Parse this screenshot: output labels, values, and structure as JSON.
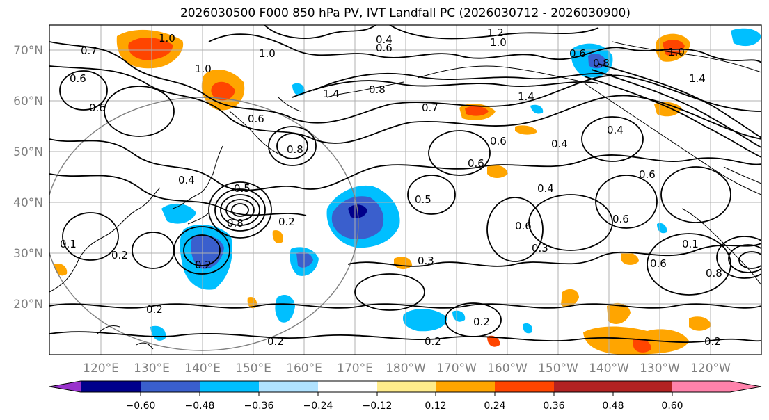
{
  "title": "2026030500 F000 850 hPa PV, IVT Landfall PC (2026030712 - 2026030900)",
  "lat_labels": [
    "70°N",
    "60°N",
    "50°N",
    "40°N",
    "30°N",
    "20°N"
  ],
  "lon_labels": [
    "120°E",
    "130°E",
    "140°E",
    "150°E",
    "160°E",
    "170°E",
    "180°W",
    "170°W",
    "160°W",
    "150°W",
    "140°W",
    "130°W",
    "120°W"
  ],
  "colorbar": {
    "colors": [
      "#9932cc",
      "#00008b",
      "#3a5fcd",
      "#00bfff",
      "#b0e2ff",
      "#ffffff",
      "#ffec8b",
      "#ffa500",
      "#ff4500",
      "#b22222",
      "#ff82ab"
    ],
    "tick_labels": [
      "−0.60",
      "−0.48",
      "−0.36",
      "−0.24",
      "−0.12",
      "0.12",
      "0.24",
      "0.36",
      "0.48",
      "0.60"
    ]
  },
  "contour_labels": [
    "0.7",
    "0.6",
    "1.0",
    "1.0",
    "1.0",
    "0.6",
    "0.4",
    "0.6",
    "1.2",
    "1.0",
    "0.6",
    "0.8",
    "1.0",
    "1.4",
    "1.4",
    "0.8",
    "0.7",
    "1.4",
    "0.6",
    "0.8",
    "0.6",
    "0.4",
    "0.4",
    "0.6",
    "0.5",
    "0.8",
    "0.4",
    "0.5",
    "0.2",
    "0.3",
    "0.4",
    "0.6",
    "0.6",
    "0.6",
    "0.3",
    "0.1",
    "0.8",
    "0.2",
    "0.2",
    "0.2",
    "0.2",
    "0.2",
    "0.2",
    "0.6",
    "0.1",
    "0.2"
  ]
}
